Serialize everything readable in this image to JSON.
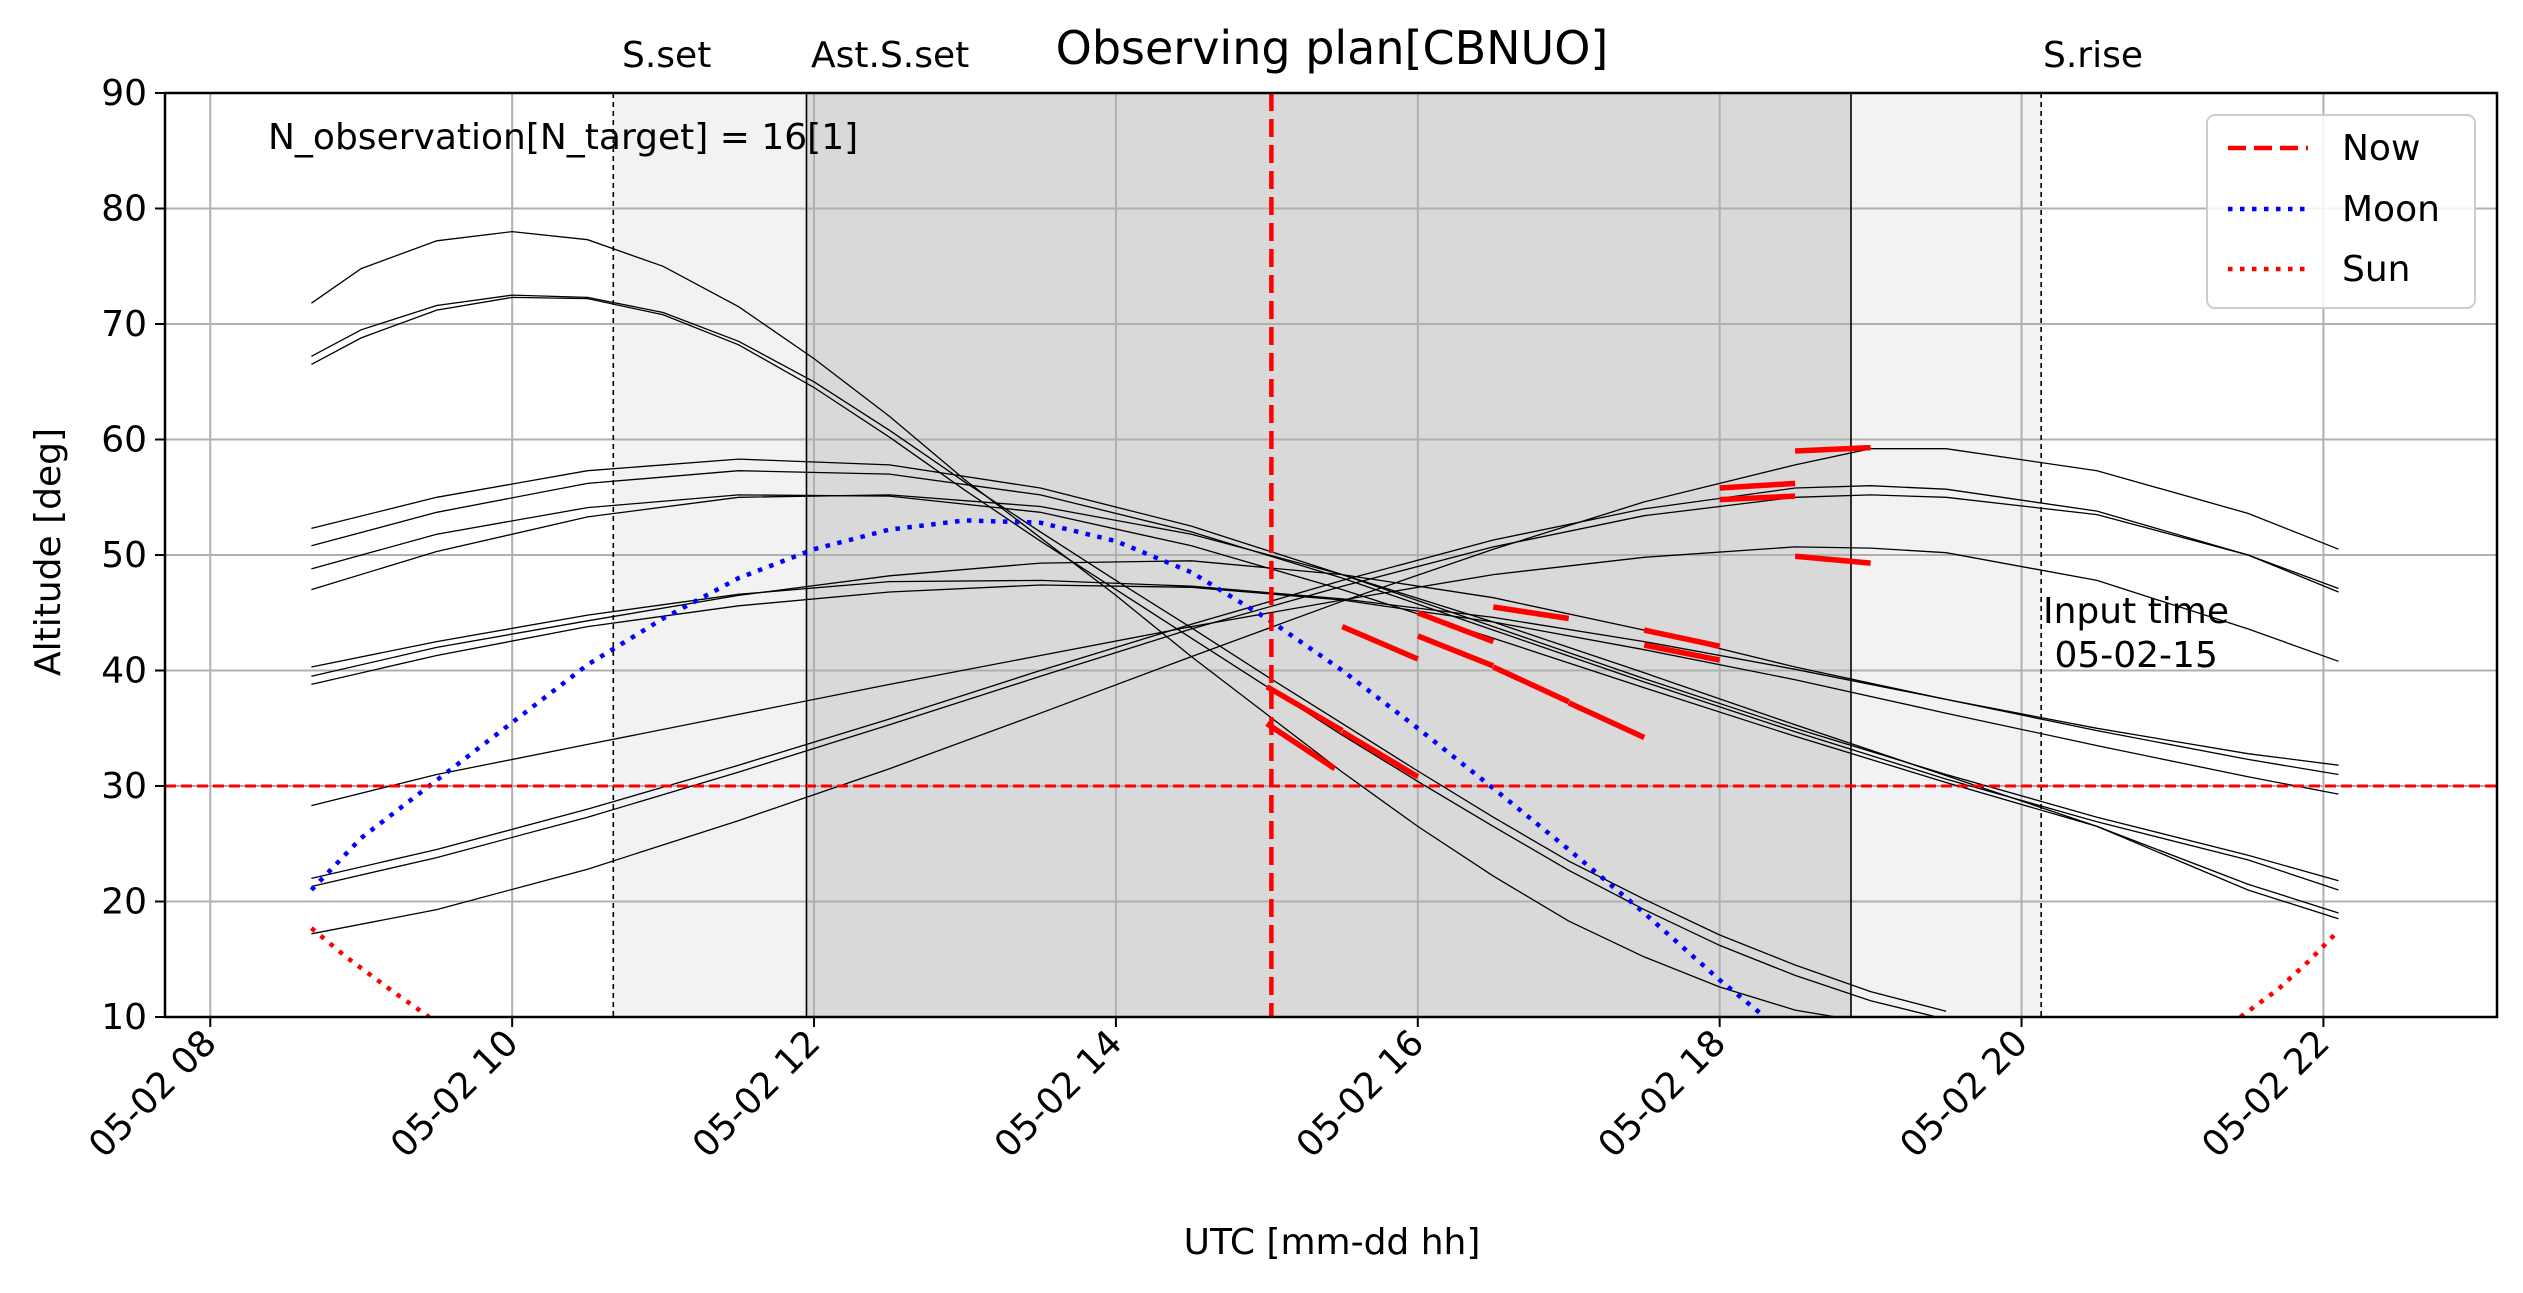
{
  "chart_data": {
    "type": "line",
    "title": "Observing plan[CBNUO]",
    "xlabel": "UTC [mm-dd hh]",
    "ylabel": "Altitude [deg]",
    "xlim": [
      7.7,
      23.15
    ],
    "ylim": [
      10,
      90
    ],
    "x_ticks": [
      8,
      10,
      12,
      14,
      16,
      18,
      20,
      22
    ],
    "x_tick_labels": [
      "05-02 08",
      "05-02 10",
      "05-02 12",
      "05-02 14",
      "05-02 16",
      "05-02 18",
      "05-02 20",
      "05-02 22"
    ],
    "y_ticks": [
      10,
      20,
      30,
      40,
      50,
      60,
      70,
      80,
      90
    ],
    "y_tick_labels": [
      "10",
      "20",
      "30",
      "40",
      "50",
      "60",
      "70",
      "80",
      "90"
    ],
    "grid": true,
    "legend_placement": "upper right",
    "annotation": "N_observation[N_target] = 16[1]",
    "input_time_label": "Input time\n 05-02-15",
    "altitude_limit": 30,
    "now": 15.03,
    "twilight": {
      "sunset": 10.67,
      "astro_sunset": 11.95,
      "astro_sunrise": 18.87,
      "sunrise": 20.13,
      "labels": {
        "sunset": "S.set",
        "astro_sunset": "Ast.S.set",
        "sunrise": "S.rise"
      }
    },
    "series": [
      {
        "name": "Now",
        "color": "#ff0000",
        "style": "dashed"
      },
      {
        "name": "Moon",
        "color": "#0000ff",
        "style": "dotted",
        "x": [
          8.67,
          9,
          9.5,
          10,
          10.5,
          11,
          11.5,
          12,
          12.5,
          13,
          13.5,
          14,
          14.5,
          15,
          15.5,
          16,
          16.5,
          17,
          17.5,
          18,
          18.3
        ],
        "y": [
          21,
          25.5,
          30.5,
          35.5,
          40.5,
          44.5,
          48,
          50.5,
          52.2,
          53,
          52.8,
          51.2,
          48.5,
          44.5,
          40,
          35,
          29.8,
          24.5,
          19,
          13.2,
          10
        ]
      },
      {
        "name": "Sun",
        "color": "#ff0000",
        "style": "dotted",
        "segments": [
          {
            "x": [
              8.67,
              8.9,
              9.2,
              9.45
            ],
            "y": [
              17.7,
              15.2,
              12.3,
              10
            ]
          },
          {
            "x": [
              21.45,
              21.7,
              21.9,
              22.08
            ],
            "y": [
              10,
              12.4,
              14.8,
              17.2
            ]
          }
        ]
      }
    ],
    "targets": [
      {
        "x": [
          8.67,
          9,
          9.5,
          10,
          10.5,
          11,
          11.5,
          12,
          12.5,
          13,
          13.5,
          14,
          14.5,
          15,
          15.5,
          16,
          16.5,
          17,
          17.5,
          18,
          18.5,
          19,
          19.5
        ],
        "y": [
          71.8,
          74.8,
          77.2,
          78,
          77.3,
          75,
          71.5,
          67,
          62,
          56.5,
          51.5,
          46.5,
          41.2,
          36.2,
          31.2,
          26.5,
          22.2,
          18.3,
          15.2,
          12.6,
          10.6,
          9.5,
          9
        ]
      },
      {
        "x": [
          8.67,
          9,
          9.5,
          10,
          10.5,
          11,
          11.5,
          12,
          12.5,
          13,
          13.5,
          14,
          14.5,
          15,
          15.5,
          16,
          16.5,
          17,
          17.5,
          18,
          18.5,
          19,
          19.5
        ],
        "y": [
          67.2,
          69.5,
          71.6,
          72.5,
          72.3,
          71,
          68.5,
          65,
          60.8,
          56.3,
          52,
          47.8,
          43.7,
          39.5,
          35.4,
          31.3,
          27.3,
          23.5,
          20.2,
          17.1,
          14.5,
          12.2,
          10.5
        ]
      },
      {
        "x": [
          8.67,
          9,
          9.5,
          10,
          10.5,
          11,
          11.5,
          12,
          12.5,
          13,
          13.5,
          14,
          14.5,
          15,
          15.5,
          16,
          16.5,
          17,
          17.5,
          18,
          18.5,
          19,
          19.5
        ],
        "y": [
          66.5,
          68.8,
          71.2,
          72.3,
          72.2,
          70.8,
          68.2,
          64.5,
          60.2,
          55.6,
          51.2,
          47,
          42.8,
          38.6,
          34.4,
          30.4,
          26.5,
          22.7,
          19.3,
          16.2,
          13.6,
          11.4,
          9.8
        ]
      },
      {
        "x": [
          8.67,
          9.5,
          10.5,
          11.5,
          12.5,
          13.5,
          14.5,
          15.5,
          16.5,
          17.5,
          18.5,
          19.5,
          20.5,
          21.5,
          22.1
        ],
        "y": [
          52.3,
          55,
          57.3,
          58.3,
          57.8,
          55.8,
          52.5,
          48.3,
          43.8,
          39.3,
          35,
          31,
          27.3,
          24,
          21.8
        ]
      },
      {
        "x": [
          8.67,
          9.5,
          10.5,
          11.5,
          12.5,
          13.5,
          14.5,
          15.5,
          16.5,
          17.5,
          18.5,
          19.5,
          20.5,
          21.5,
          22.1
        ],
        "y": [
          50.8,
          53.7,
          56.2,
          57.3,
          57,
          55.2,
          52,
          48,
          43.5,
          39,
          34.7,
          30.6,
          26.9,
          23.6,
          21
        ]
      },
      {
        "x": [
          8.67,
          9.5,
          10.5,
          11.5,
          12.5,
          13.5,
          14.5,
          15.5,
          16.5,
          17.5,
          18.5,
          19.5,
          20.5,
          21.5,
          22.1
        ],
        "y": [
          48.8,
          51.8,
          54.1,
          55.2,
          55.1,
          53.7,
          50.8,
          47,
          42.8,
          38.5,
          34.3,
          30.3,
          26.5,
          21.5,
          19
        ]
      },
      {
        "x": [
          8.67,
          9.5,
          10.5,
          11.5,
          12.5,
          13.5,
          14.5,
          15.5,
          16.5,
          17.5,
          18.5,
          19.5,
          20.5,
          21.5,
          22.1
        ],
        "y": [
          47,
          50.3,
          53.3,
          55,
          55.2,
          54.2,
          51.8,
          48.3,
          44.2,
          39.8,
          35.3,
          30.9,
          26.5,
          21,
          18.5
        ]
      },
      {
        "x": [
          8.67,
          9.5,
          10.5,
          11.5,
          12.5,
          13.5,
          14.5,
          15.5,
          16.5,
          17.5,
          18.5,
          19.5,
          20.5,
          21.5,
          22.1
        ],
        "y": [
          40.3,
          42.5,
          44.8,
          46.6,
          47.7,
          47.8,
          47.3,
          46.2,
          44.6,
          42.5,
          40.1,
          37.5,
          34.8,
          32.3,
          31
        ]
      },
      {
        "x": [
          8.67,
          9.5,
          10.5,
          11.5,
          12.5,
          13.5,
          14.5,
          15.5,
          16.5,
          17.5,
          18.5,
          19.5,
          20.5,
          21.5,
          22.1
        ],
        "y": [
          39.5,
          42,
          44.3,
          46.5,
          48.2,
          49.3,
          49.5,
          48.3,
          46.3,
          43.5,
          40.3,
          37.5,
          35,
          32.8,
          31.8
        ]
      },
      {
        "x": [
          8.67,
          9.5,
          10.5,
          11.5,
          12.5,
          13.5,
          14.5,
          15.5,
          16.5,
          17.5,
          18.5,
          19.5,
          20.5,
          21.5,
          22.1
        ],
        "y": [
          38.8,
          41.3,
          43.8,
          45.6,
          46.8,
          47.4,
          47.2,
          46.1,
          44.2,
          41.8,
          39.2,
          36.3,
          33.5,
          30.8,
          29.3
        ]
      },
      {
        "x": [
          8.67,
          9.5,
          10.5,
          11.5,
          12.5,
          13.5,
          14.5,
          15.5,
          16.5,
          17.5,
          18.5,
          19,
          19.5,
          20.5,
          21.5,
          22.1
        ],
        "y": [
          28.3,
          31,
          33.6,
          36.2,
          38.8,
          41.3,
          43.8,
          46.1,
          48.3,
          49.8,
          50.7,
          50.6,
          50.2,
          47.8,
          43.6,
          40.8
        ]
      },
      {
        "x": [
          8.67,
          9.5,
          10.5,
          11.5,
          12.5,
          13.5,
          14.5,
          15.5,
          16.5,
          17.5,
          18.5,
          19,
          19.5,
          20.5,
          21.5,
          22.1
        ],
        "y": [
          22,
          24.5,
          28,
          31.8,
          35.8,
          40,
          44,
          47.8,
          51.3,
          54,
          55.8,
          56,
          55.7,
          53.8,
          50,
          46.8
        ]
      },
      {
        "x": [
          8.67,
          9.5,
          10.5,
          11.5,
          12.5,
          13.5,
          14.5,
          15.5,
          16.5,
          17.5,
          18.5,
          19,
          19.5,
          20.5,
          21.5,
          22.1
        ],
        "y": [
          21.3,
          23.8,
          27.3,
          31.2,
          35.3,
          39.5,
          43.6,
          47.3,
          50.7,
          53.4,
          55,
          55.2,
          55,
          53.5,
          50,
          47.1
        ]
      },
      {
        "x": [
          8.67,
          9.5,
          10.5,
          11.5,
          12.5,
          13.5,
          14.5,
          15.5,
          16.5,
          17.5,
          18.5,
          19,
          19.5,
          20.5,
          21.5,
          22.1
        ],
        "y": [
          17.2,
          19.3,
          22.8,
          27,
          31.5,
          36.3,
          41.2,
          46,
          50.5,
          54.6,
          57.8,
          59.2,
          59.2,
          57.3,
          53.6,
          50.5
        ]
      }
    ],
    "observations": [
      {
        "x": [
          15.0,
          15.5
        ],
        "y": [
          38.6,
          34.8
        ]
      },
      {
        "x": [
          15.5,
          16.0
        ],
        "y": [
          34.7,
          30.8
        ]
      },
      {
        "x": [
          15.0,
          15.45
        ],
        "y": [
          35.4,
          31.5
        ]
      },
      {
        "x": [
          15.5,
          16.0
        ],
        "y": [
          43.8,
          41.0
        ]
      },
      {
        "x": [
          16.0,
          16.5
        ],
        "y": [
          45.0,
          42.5
        ]
      },
      {
        "x": [
          16.0,
          16.5
        ],
        "y": [
          43.0,
          40.4
        ]
      },
      {
        "x": [
          16.5,
          17.0
        ],
        "y": [
          40.3,
          37.3
        ]
      },
      {
        "x": [
          17.0,
          17.5
        ],
        "y": [
          37.2,
          34.2
        ]
      },
      {
        "x": [
          16.5,
          17.0
        ],
        "y": [
          45.5,
          44.5
        ]
      },
      {
        "x": [
          17.5,
          18.0
        ],
        "y": [
          43.5,
          42.1
        ]
      },
      {
        "x": [
          17.5,
          18.0
        ],
        "y": [
          42.2,
          40.9
        ]
      },
      {
        "x": [
          18.0,
          18.5
        ],
        "y": [
          55.8,
          56.2
        ]
      },
      {
        "x": [
          18.0,
          18.5
        ],
        "y": [
          54.8,
          55.1
        ]
      },
      {
        "x": [
          18.5,
          19.0
        ],
        "y": [
          59.0,
          59.3
        ]
      },
      {
        "x": [
          18.5,
          19.0
        ],
        "y": [
          49.9,
          49.3
        ]
      }
    ]
  }
}
